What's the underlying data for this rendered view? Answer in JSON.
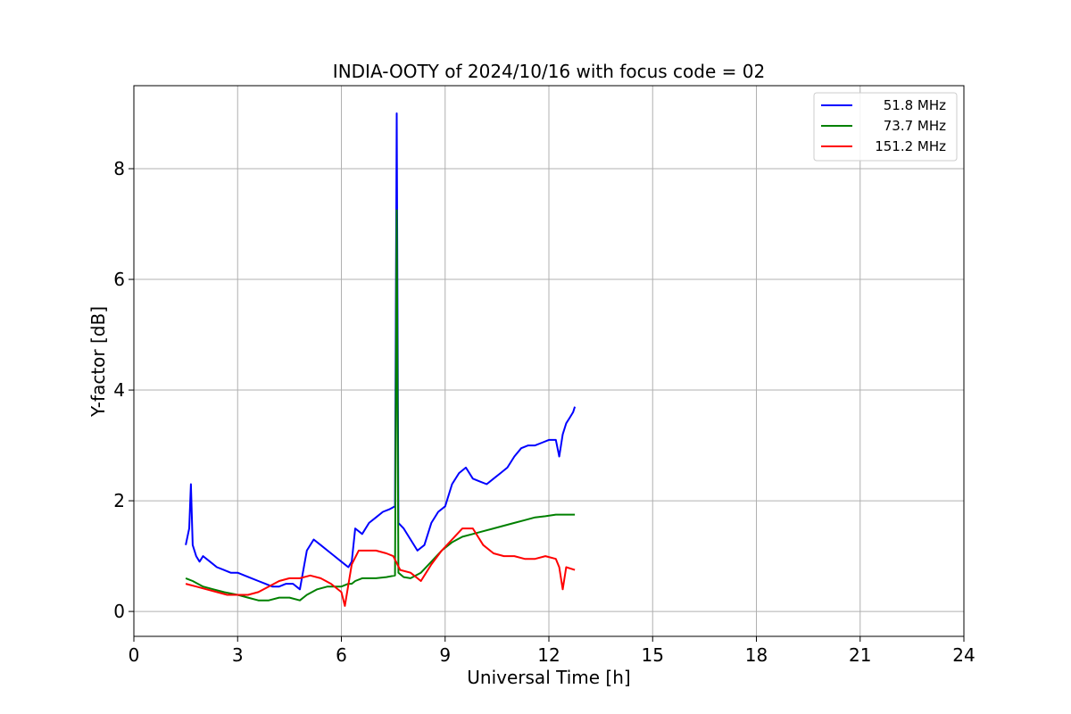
{
  "chart_data": {
    "type": "line",
    "title": "INDIA-OOTY of 2024/10/16 with focus code = 02",
    "xlabel": "Universal Time [h]",
    "ylabel": "Y-factor [dB]",
    "xlim": [
      0,
      24
    ],
    "ylim": [
      -0.45,
      9.5
    ],
    "xticks": [
      0,
      3,
      6,
      9,
      12,
      15,
      18,
      21,
      24
    ],
    "yticks": [
      0,
      2,
      4,
      6,
      8
    ],
    "grid": true,
    "legend_position": "top-right",
    "series": [
      {
        "name": "51.8 MHz",
        "color": "#0000ff",
        "x": [
          1.5,
          1.6,
          1.65,
          1.7,
          1.8,
          1.9,
          2.0,
          2.2,
          2.4,
          2.6,
          2.8,
          3.0,
          3.2,
          3.4,
          3.6,
          3.8,
          4.0,
          4.2,
          4.4,
          4.6,
          4.8,
          5.0,
          5.2,
          5.4,
          5.6,
          5.8,
          6.0,
          6.2,
          6.3,
          6.4,
          6.6,
          6.8,
          7.0,
          7.2,
          7.4,
          7.55,
          7.6,
          7.65,
          7.8,
          8.0,
          8.2,
          8.4,
          8.6,
          8.8,
          9.0,
          9.2,
          9.4,
          9.6,
          9.8,
          10.0,
          10.2,
          10.4,
          10.6,
          10.8,
          11.0,
          11.2,
          11.4,
          11.6,
          11.8,
          12.0,
          12.2,
          12.3,
          12.4,
          12.5,
          12.6,
          12.7,
          12.75
        ],
        "values": [
          1.2,
          1.5,
          2.3,
          1.2,
          1.0,
          0.9,
          1.0,
          0.9,
          0.8,
          0.75,
          0.7,
          0.7,
          0.65,
          0.6,
          0.55,
          0.5,
          0.45,
          0.45,
          0.5,
          0.5,
          0.4,
          1.1,
          1.3,
          1.2,
          1.1,
          1.0,
          0.9,
          0.8,
          0.9,
          1.5,
          1.4,
          1.6,
          1.7,
          1.8,
          1.85,
          1.9,
          9.0,
          1.6,
          1.5,
          1.3,
          1.1,
          1.2,
          1.6,
          1.8,
          1.9,
          2.3,
          2.5,
          2.6,
          2.4,
          2.35,
          2.3,
          2.4,
          2.5,
          2.6,
          2.8,
          2.95,
          3.0,
          3.0,
          3.05,
          3.1,
          3.1,
          2.8,
          3.2,
          3.4,
          3.5,
          3.6,
          3.7
        ]
      },
      {
        "name": "73.7 MHz",
        "color": "#008000",
        "x": [
          1.5,
          1.7,
          2.0,
          2.3,
          2.6,
          3.0,
          3.3,
          3.6,
          3.9,
          4.2,
          4.5,
          4.8,
          5.0,
          5.3,
          5.6,
          6.0,
          6.2,
          6.3,
          6.4,
          6.6,
          6.8,
          7.0,
          7.3,
          7.55,
          7.6,
          7.65,
          7.8,
          8.0,
          8.3,
          8.6,
          8.9,
          9.2,
          9.5,
          9.8,
          10.1,
          10.4,
          10.7,
          11.0,
          11.3,
          11.6,
          11.9,
          12.2,
          12.5,
          12.75
        ],
        "values": [
          0.6,
          0.55,
          0.45,
          0.4,
          0.35,
          0.3,
          0.25,
          0.2,
          0.2,
          0.25,
          0.25,
          0.2,
          0.3,
          0.4,
          0.45,
          0.45,
          0.5,
          0.5,
          0.55,
          0.6,
          0.6,
          0.6,
          0.62,
          0.65,
          7.25,
          0.7,
          0.62,
          0.6,
          0.7,
          0.9,
          1.1,
          1.25,
          1.35,
          1.4,
          1.45,
          1.5,
          1.55,
          1.6,
          1.65,
          1.7,
          1.72,
          1.75,
          1.75,
          1.75
        ]
      },
      {
        "name": "151.2 MHz",
        "color": "#ff0000",
        "x": [
          1.5,
          1.8,
          2.1,
          2.4,
          2.7,
          3.0,
          3.3,
          3.6,
          3.9,
          4.2,
          4.5,
          4.8,
          5.1,
          5.4,
          5.7,
          6.0,
          6.1,
          6.3,
          6.5,
          6.8,
          7.0,
          7.3,
          7.5,
          7.7,
          8.0,
          8.3,
          8.6,
          8.9,
          9.2,
          9.5,
          9.8,
          10.1,
          10.4,
          10.7,
          11.0,
          11.3,
          11.6,
          11.9,
          12.2,
          12.3,
          12.4,
          12.5,
          12.75
        ],
        "values": [
          0.5,
          0.45,
          0.4,
          0.35,
          0.3,
          0.3,
          0.3,
          0.35,
          0.45,
          0.55,
          0.6,
          0.6,
          0.65,
          0.6,
          0.5,
          0.35,
          0.1,
          0.85,
          1.1,
          1.1,
          1.1,
          1.05,
          1.0,
          0.75,
          0.7,
          0.55,
          0.85,
          1.1,
          1.3,
          1.5,
          1.5,
          1.2,
          1.05,
          1.0,
          1.0,
          0.95,
          0.95,
          1.0,
          0.95,
          0.8,
          0.4,
          0.8,
          0.75
        ]
      }
    ]
  }
}
